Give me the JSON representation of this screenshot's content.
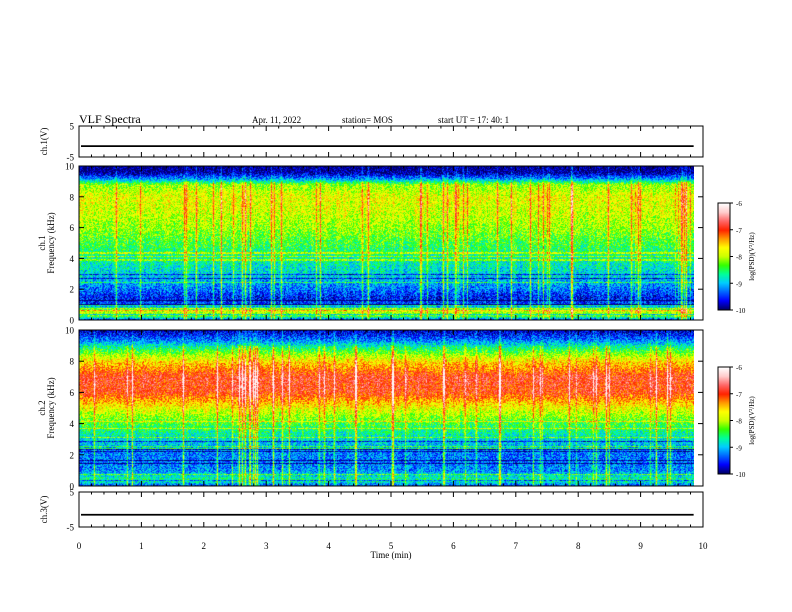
{
  "header": {
    "title": "VLF Spectra",
    "date": "Apr. 11, 2022",
    "station": "station= MOS",
    "start": "start  UT  =   17: 40: 1"
  },
  "chart_data": [
    {
      "type": "line",
      "panel": "ch1-voltage",
      "ylabel": "ch.1(V)",
      "ylim": [
        -5,
        5
      ],
      "y_ticks": [
        "5",
        "-5"
      ],
      "trace_level": -1.5
    },
    {
      "type": "heatmap",
      "panel": "ch1-spectrogram",
      "ylabel_channel": "ch.1",
      "ylabel": "Frequency  (kHz)",
      "ylim": [
        0,
        10
      ],
      "y_ticks": [
        "0",
        "2",
        "4",
        "6",
        "8",
        "10"
      ],
      "colorbar": {
        "label": "log(PSD)(V²/Hz)",
        "range": [
          -10,
          -6
        ],
        "ticks": [
          "-6",
          "-7",
          "-8",
          "-9",
          "-10"
        ]
      },
      "profile_by_khz": [
        {
          "f": 0.0,
          "v": -9.6
        },
        {
          "f": 0.3,
          "v": -8.3
        },
        {
          "f": 0.6,
          "v": -7.9
        },
        {
          "f": 1.0,
          "v": -9.4
        },
        {
          "f": 1.5,
          "v": -9.6
        },
        {
          "f": 2.0,
          "v": -9.3
        },
        {
          "f": 3.0,
          "v": -8.9
        },
        {
          "f": 4.0,
          "v": -8.7
        },
        {
          "f": 5.0,
          "v": -8.4
        },
        {
          "f": 6.0,
          "v": -8.1
        },
        {
          "f": 7.0,
          "v": -7.9
        },
        {
          "f": 8.0,
          "v": -7.8
        },
        {
          "f": 8.8,
          "v": -8.1
        },
        {
          "f": 9.2,
          "v": -9.2
        },
        {
          "f": 9.6,
          "v": -9.9
        },
        {
          "f": 10.0,
          "v": -10.0
        }
      ]
    },
    {
      "type": "heatmap",
      "panel": "ch2-spectrogram",
      "ylabel_channel": "ch.2",
      "ylabel": "Frequency  (kHz)",
      "ylim": [
        0,
        10
      ],
      "y_ticks": [
        "0",
        "2",
        "4",
        "6",
        "8",
        "10"
      ],
      "colorbar": {
        "label": "log(PSD)(V²/Hz)",
        "range": [
          -10,
          -6
        ],
        "ticks": [
          "-6",
          "-7",
          "-8",
          "-9",
          "-10"
        ]
      },
      "profile_by_khz": [
        {
          "f": 0.0,
          "v": -9.5
        },
        {
          "f": 0.4,
          "v": -8.6
        },
        {
          "f": 1.0,
          "v": -9.2
        },
        {
          "f": 2.0,
          "v": -9.3
        },
        {
          "f": 3.0,
          "v": -8.9
        },
        {
          "f": 4.0,
          "v": -8.4
        },
        {
          "f": 5.0,
          "v": -7.8
        },
        {
          "f": 6.0,
          "v": -7.0
        },
        {
          "f": 7.0,
          "v": -6.9
        },
        {
          "f": 8.0,
          "v": -7.6
        },
        {
          "f": 8.8,
          "v": -8.5
        },
        {
          "f": 9.4,
          "v": -9.3
        },
        {
          "f": 10.0,
          "v": -9.8
        }
      ]
    },
    {
      "type": "line",
      "panel": "ch3-voltage",
      "ylabel": "ch.3(V)",
      "ylim": [
        -5,
        5
      ],
      "y_ticks": [
        "5",
        "-5"
      ],
      "trace_level": -1.5,
      "xlabel": "Time  (min)",
      "xlim": [
        0,
        10
      ],
      "x_ticks": [
        "0",
        "1",
        "2",
        "3",
        "4",
        "5",
        "6",
        "7",
        "8",
        "9",
        "10"
      ],
      "data_end_min": 9.85
    }
  ],
  "colors": {
    "colormap": [
      "#000066",
      "#0000ff",
      "#0066ff",
      "#00ccff",
      "#00ff99",
      "#33ff00",
      "#ccff00",
      "#ffff00",
      "#ff9900",
      "#ff2200",
      "#ff6666",
      "#ffcccc",
      "#ffffff"
    ]
  }
}
